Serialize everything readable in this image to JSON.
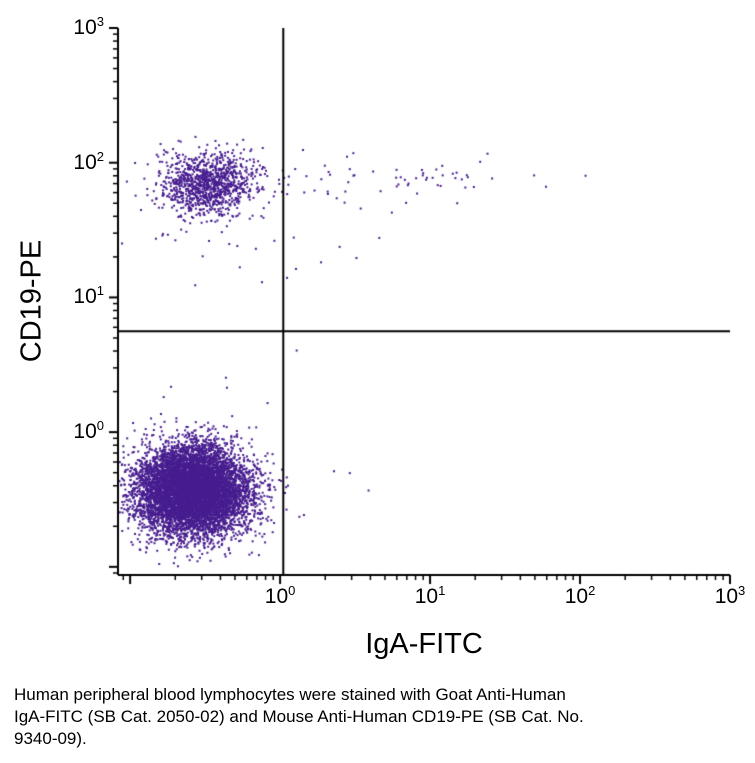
{
  "chart_data": {
    "type": "scatter",
    "title": "",
    "xlabel": "IgA-FITC",
    "ylabel": "CD19-PE",
    "xscale": "log",
    "yscale": "log",
    "xlim": [
      0.083,
      1000
    ],
    "ylim": [
      0.087,
      1000
    ],
    "x_tick_exponents": [
      0,
      1,
      2,
      3
    ],
    "y_tick_exponents": [
      0,
      1,
      2,
      3
    ],
    "grid": false,
    "legend": false,
    "dot_color": "#471d8f",
    "axis_color": "#000000",
    "quadrant_lines": {
      "x": 1.05,
      "y": 5.6
    },
    "seed": 42,
    "populations": [
      {
        "name": "lymphocytes-cd19neg-iganeg",
        "quadrant": "lower-left",
        "n": 8000,
        "center_x": 0.26,
        "center_y": 0.37,
        "sigma_log_x": 0.185,
        "sigma_log_y": 0.165
      },
      {
        "name": "b-cells-cd19pos-iganeg",
        "quadrant": "upper-left",
        "n": 1100,
        "center_x": 0.33,
        "center_y": 70,
        "sigma_log_x": 0.155,
        "sigma_log_y": 0.115
      },
      {
        "name": "b-cells-cd19pos-igapos",
        "quadrant": "upper-right",
        "n": 55,
        "center_x": 6.0,
        "center_y": 80,
        "sigma_log_x": 0.42,
        "sigma_log_y": 0.1
      },
      {
        "name": "upper-left-low-tail",
        "quadrant": "upper-left",
        "n": 26,
        "center_x": 0.3,
        "center_y": 30,
        "sigma_log_x": 0.25,
        "sigma_log_y": 0.25
      },
      {
        "name": "lower-left-high-tail",
        "quadrant": "lower-left",
        "n": 20,
        "center_x": 0.3,
        "center_y": 1.1,
        "sigma_log_x": 0.22,
        "sigma_log_y": 0.18
      },
      {
        "name": "left-edge-upper",
        "quadrant": "upper-left",
        "n": 12,
        "center_x": 0.083,
        "center_y": 65,
        "sigma_log_x": 0.0,
        "sigma_log_y": 0.22
      },
      {
        "name": "left-edge-lower",
        "quadrant": "lower-left",
        "n": 60,
        "center_x": 0.083,
        "center_y": 0.35,
        "sigma_log_x": 0.0,
        "sigma_log_y": 0.22
      },
      {
        "name": "bridge-upper-mid",
        "quadrant": "upper-right",
        "n": 10,
        "center_x": 1.6,
        "center_y": 75,
        "sigma_log_x": 0.15,
        "sigma_log_y": 0.12
      },
      {
        "name": "mid-sparse-noise",
        "quadrant": "upper-right",
        "n": 7,
        "center_x": 3.0,
        "center_y": 30,
        "sigma_log_x": 0.35,
        "sigma_log_y": 0.3
      },
      {
        "name": "lower-right-noise",
        "quadrant": "lower-left",
        "n": 6,
        "center_x": 1.6,
        "center_y": 0.4,
        "sigma_log_x": 0.18,
        "sigma_log_y": 0.2
      }
    ]
  },
  "caption": "Human peripheral blood lymphocytes were stained with Goat Anti-Human\nIgA-FITC (SB Cat. 2050-02) and Mouse Anti-Human CD19-PE (SB Cat. No.\n9340-09)."
}
